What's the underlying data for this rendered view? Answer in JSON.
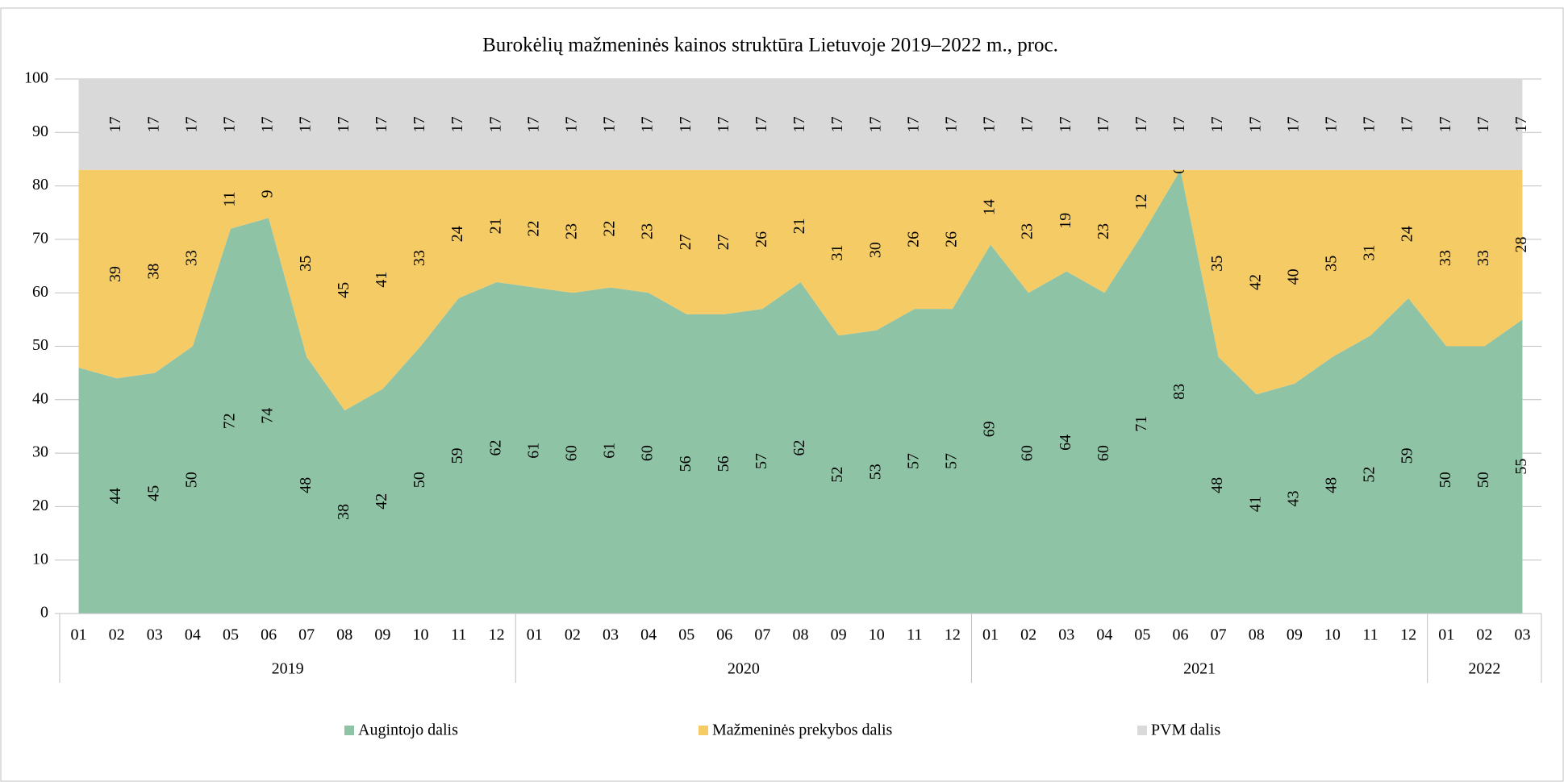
{
  "chart_data": {
    "type": "stacked_area",
    "title": "Burokėlių mažmeninės kainos struktūra Lietuvoje 2019–2022 m., proc.",
    "groups": [
      {
        "name": "2019",
        "categories": [
          "01",
          "02",
          "03",
          "04",
          "05",
          "06",
          "07",
          "08",
          "09",
          "10",
          "11",
          "12"
        ]
      },
      {
        "name": "2020",
        "categories": [
          "01",
          "02",
          "03",
          "04",
          "05",
          "06",
          "07",
          "08",
          "09",
          "10",
          "11",
          "12"
        ]
      },
      {
        "name": "2021",
        "categories": [
          "01",
          "02",
          "03",
          "04",
          "05",
          "06",
          "07",
          "08",
          "09",
          "10",
          "11",
          "12"
        ]
      },
      {
        "name": "2022",
        "categories": [
          "01",
          "02",
          "03"
        ]
      }
    ],
    "series": [
      {
        "name": "Augintojo dalis",
        "color": "#8fc3a6",
        "values": [
          46,
          44,
          45,
          50,
          72,
          74,
          48,
          38,
          42,
          50,
          59,
          62,
          61,
          60,
          61,
          60,
          56,
          56,
          57,
          62,
          52,
          53,
          57,
          57,
          69,
          60,
          64,
          60,
          71,
          83,
          48,
          41,
          43,
          48,
          52,
          59,
          50,
          50,
          55
        ],
        "value_labels": [
          null,
          "44",
          "45",
          "50",
          "72",
          "74",
          "48",
          "38",
          "42",
          "50",
          "59",
          "62",
          "61",
          "60",
          "61",
          "60",
          "56",
          "56",
          "57",
          "62",
          "52",
          "53",
          "57",
          "57",
          "69",
          "60",
          "64",
          "60",
          "71",
          "83",
          "48",
          "41",
          "43",
          "48",
          "52",
          "59",
          "50",
          "50",
          "55"
        ]
      },
      {
        "name": "Mažmeninės prekybos dalis",
        "color": "#f5cb65",
        "values": [
          37,
          39,
          38,
          33,
          11,
          9,
          35,
          45,
          41,
          33,
          24,
          21,
          22,
          23,
          22,
          23,
          27,
          27,
          26,
          21,
          31,
          30,
          26,
          26,
          14,
          23,
          19,
          23,
          12,
          0,
          35,
          42,
          40,
          35,
          31,
          24,
          33,
          33,
          28
        ],
        "value_labels": [
          null,
          "39",
          "38",
          "33",
          "11",
          "9",
          "35",
          "45",
          "41",
          "33",
          "24",
          "21",
          "22",
          "23",
          "22",
          "23",
          "27",
          "27",
          "26",
          "21",
          "31",
          "30",
          "26",
          "26",
          "14",
          "23",
          "19",
          "23",
          "12",
          "0",
          "35",
          "42",
          "40",
          "35",
          "31",
          "24",
          "33",
          "33",
          "28"
        ]
      },
      {
        "name": "PVM dalis",
        "color": "#d9d9d9",
        "values": [
          17,
          17,
          17,
          17,
          17,
          17,
          17,
          17,
          17,
          17,
          17,
          17,
          17,
          17,
          17,
          17,
          17,
          17,
          17,
          17,
          17,
          17,
          17,
          17,
          17,
          17,
          17,
          17,
          17,
          17,
          17,
          17,
          17,
          17,
          17,
          17,
          17,
          17,
          17
        ],
        "value_labels": [
          null,
          "17",
          "17",
          "17",
          "17",
          "17",
          "17",
          "17",
          "17",
          "17",
          "17",
          "17",
          "17",
          "17",
          "17",
          "17",
          "17",
          "17",
          "17",
          "17",
          "17",
          "17",
          "17",
          "17",
          "17",
          "17",
          "17",
          "17",
          "17",
          "17",
          "17",
          "17",
          "17",
          "17",
          "17",
          "17",
          "17",
          "17",
          "17"
        ]
      }
    ],
    "ylim": [
      0,
      100
    ],
    "yticks": [
      0,
      10,
      20,
      30,
      40,
      50,
      60,
      70,
      80,
      90,
      100
    ],
    "grid": true,
    "legend": "bottom"
  }
}
